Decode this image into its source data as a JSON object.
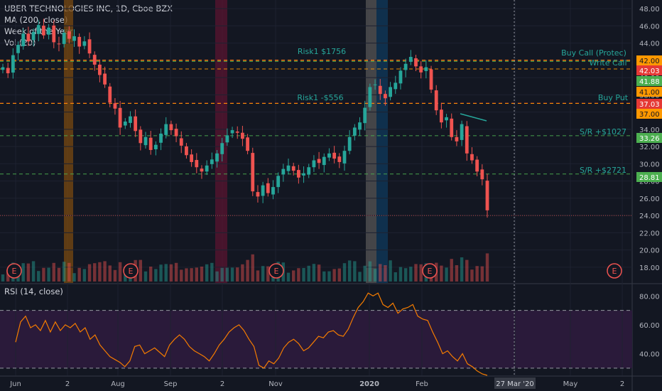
{
  "legend": {
    "title": "UBER TECHNOLOGIES INC, 1D, Cboe BZX",
    "ma": "MA (200, close)",
    "woy": "Week of the Year",
    "vol": "Vol (20)"
  },
  "rsi_label": "RSI (14, close)",
  "colors": {
    "background": "#131722",
    "up": "#26a69a",
    "down": "#ef5350",
    "rsi_line": "#f57c00",
    "rsi_band": "#2a1a3a",
    "level_orange": "#ff9800",
    "level_red": "#e53935",
    "level_green": "#4caf50",
    "level_text": "#26a69a"
  },
  "crosshair_date": "27 Mar '20",
  "chart_data": [
    {
      "type": "candlestick",
      "title": "UBER TECHNOLOGIES INC, 1D, Cboe BZX",
      "price_axis_ticks": [
        "48.00",
        "46.00",
        "44.00",
        "42.00",
        "40.00",
        "38.00",
        "36.00",
        "34.00",
        "32.00",
        "30.00",
        "28.00",
        "26.00",
        "24.00",
        "22.00",
        "20.00",
        "18.00"
      ],
      "ylim": [
        17,
        49
      ],
      "time_axis_ticks": [
        "Jun",
        "2",
        "Aug",
        "Sep",
        "2",
        "Nov",
        "2020",
        "Feb",
        "27 Mar '20",
        "May",
        "2"
      ],
      "horizontal_levels": [
        {
          "label": "Risk1 $1756",
          "price": 42.0,
          "tag": "42.00",
          "tag_color": "#ff9800"
        },
        {
          "label": "Write Call",
          "price": 42.03,
          "tag": "42.03",
          "tag_color": "#e53935"
        },
        {
          "label": "Buy Call (Protec)",
          "price": 42.0,
          "tag": "",
          "tag_color": ""
        },
        {
          "label": "",
          "price": 41.88,
          "tag": "41.88",
          "tag_color": "#4caf50"
        },
        {
          "label": "",
          "price": 41.0,
          "tag": "41.00",
          "tag_color": "#ff9800"
        },
        {
          "label": "Risk1 -$556",
          "price": 37.03,
          "tag": "37.03",
          "tag_color": "#e53935"
        },
        {
          "label": "Buy Put",
          "price": 37.0,
          "tag": "37.00",
          "tag_color": "#ff9800"
        },
        {
          "label": "S/R +$1027",
          "price": 33.26,
          "tag": "33.26",
          "tag_color": "#4caf50"
        },
        {
          "label": "S/R +$2721",
          "price": 28.81,
          "tag": "28.81",
          "tag_color": "#4caf50"
        }
      ],
      "earnings_markers": [
        "E",
        "E",
        "E",
        "E",
        "E"
      ],
      "close_series": [
        41.2,
        40.5,
        42.6,
        43.8,
        45.1,
        44.2,
        45.3,
        46.1,
        44.9,
        45.8,
        44.1,
        43.9,
        45.2,
        44.5,
        44.8,
        43.6,
        44.2,
        42.8,
        41.5,
        40.3,
        39.2,
        37.1,
        36.4,
        34.2,
        34.9,
        35.5,
        33.8,
        32.4,
        33.1,
        31.6,
        32.2,
        33.5,
        34.6,
        33.9,
        33.2,
        32.1,
        31.0,
        30.2,
        29.6,
        29.1,
        29.8,
        30.5,
        31.2,
        32.4,
        33.3,
        33.9,
        33.6,
        32.9,
        31.5,
        26.8,
        26.2,
        27.5,
        26.6,
        27.3,
        28.6,
        29.4,
        29.8,
        29.2,
        28.4,
        28.9,
        29.6,
        30.4,
        30.1,
        30.8,
        31.2,
        30.6,
        30.2,
        31.5,
        33.1,
        34.2,
        34.8,
        36.5,
        38.9,
        39.2,
        38.1,
        37.6,
        38.9,
        39.4,
        40.8,
        41.6,
        42.4,
        41.3,
        40.6,
        41.2,
        38.6,
        36.2,
        34.8,
        35.4,
        33.1,
        32.6,
        34.6,
        31.2,
        30.4,
        29.1,
        28.2,
        24.6
      ],
      "rsi_axis_ticks": [
        "80.00",
        "60.00",
        "40.00"
      ],
      "rsi_levels": [
        70,
        30
      ],
      "rsi_ylim": [
        25,
        88
      ],
      "rsi_series": [
        48,
        62,
        66,
        58,
        60,
        56,
        63,
        55,
        62,
        56,
        60,
        58,
        61,
        55,
        58,
        50,
        53,
        46,
        42,
        38,
        36,
        34,
        31,
        35,
        45,
        46,
        40,
        42,
        44,
        41,
        38,
        46,
        50,
        53,
        50,
        45,
        42,
        40,
        38,
        35,
        40,
        46,
        50,
        55,
        58,
        60,
        56,
        50,
        45,
        32,
        30,
        35,
        33,
        37,
        44,
        48,
        50,
        47,
        42,
        44,
        48,
        52,
        51,
        55,
        56,
        53,
        52,
        57,
        65,
        72,
        76,
        82,
        80,
        82,
        74,
        72,
        75,
        68,
        71,
        72,
        74,
        66,
        64,
        63,
        55,
        48,
        40,
        42,
        38,
        35,
        40,
        33,
        31,
        28,
        26,
        25
      ]
    }
  ]
}
